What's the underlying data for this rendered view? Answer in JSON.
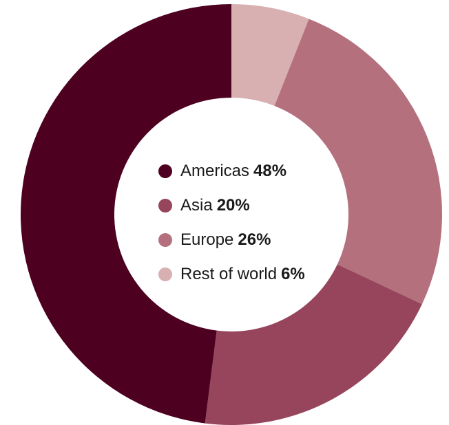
{
  "chart_data": {
    "type": "pie",
    "variant": "donut",
    "title": "",
    "categories": [
      "Americas",
      "Asia",
      "Europe",
      "Rest of world"
    ],
    "values": [
      48,
      20,
      26,
      6
    ],
    "value_labels": [
      "48%",
      "20%",
      "26%",
      "6%"
    ],
    "colors": [
      "#4d0020",
      "#97455c",
      "#b4717d",
      "#d8b0b2"
    ],
    "draw_order": [
      3,
      2,
      1,
      0
    ],
    "start_direction": "top",
    "clockwise": true,
    "legend_position": "center"
  }
}
